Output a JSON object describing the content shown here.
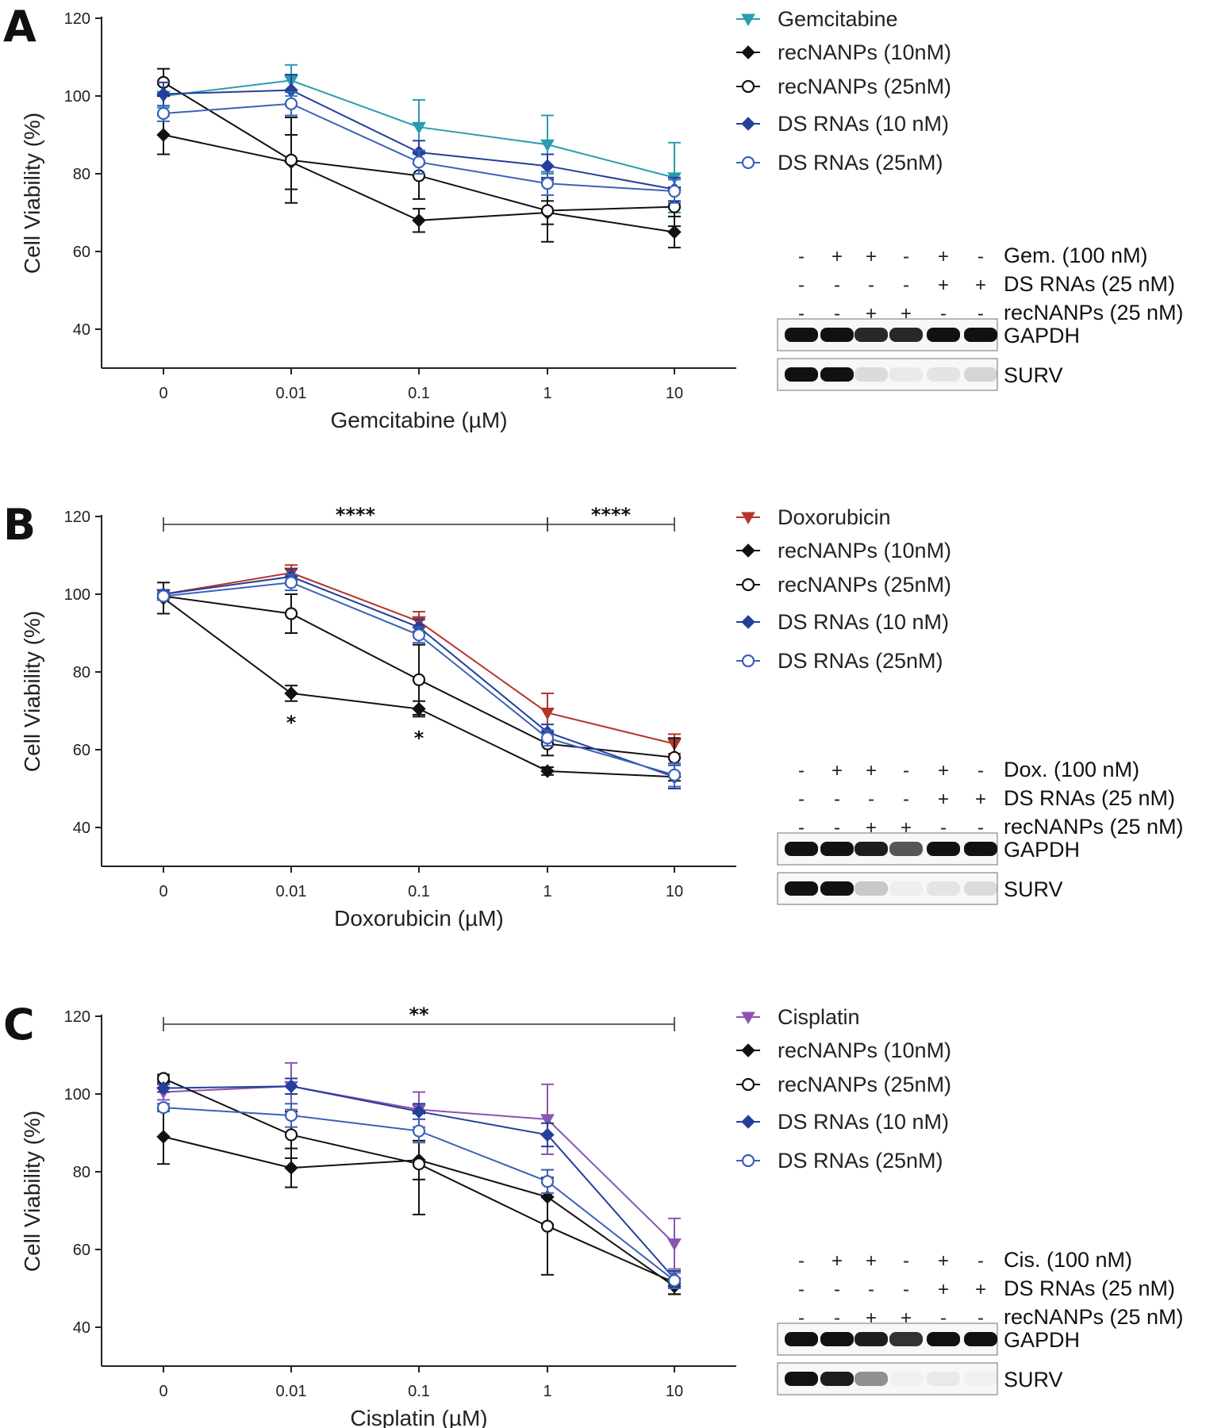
{
  "panel_letters": [
    "A",
    "B",
    "C"
  ],
  "chart_data": [
    {
      "type": "line",
      "panel": "A",
      "xlabel": "Gemcitabine (µM)",
      "ylabel": "Cell Viability (%)",
      "categories": [
        "0",
        "0.01",
        "0.1",
        "1",
        "10"
      ],
      "yticks": [
        40,
        60,
        80,
        100,
        120
      ],
      "ylim": [
        30,
        120
      ],
      "series": [
        {
          "name": "Gemcitabine",
          "color": "#2a9bb0",
          "marker": "triangle-down",
          "values": [
            100,
            104,
            92,
            87.5,
            79
          ],
          "errors": [
            3,
            4,
            7,
            7.5,
            9
          ]
        },
        {
          "name": "recNANPs (10nM)",
          "color": "#111111",
          "marker": "diamond",
          "values": [
            90,
            83,
            68,
            70,
            65
          ],
          "errors": [
            5,
            7,
            3,
            3,
            4
          ]
        },
        {
          "name": "recNANPs (25nM)",
          "color": "#111111",
          "marker": "circle-open",
          "values": [
            103.5,
            83.5,
            79.5,
            70.5,
            71.5
          ],
          "errors": [
            3.5,
            11,
            6,
            8,
            5
          ]
        },
        {
          "name": "DS RNAs (10 nM)",
          "color": "#243f9c",
          "marker": "diamond",
          "values": [
            100.5,
            101.5,
            85.5,
            82,
            76
          ],
          "errors": [
            3,
            4,
            3,
            3,
            3
          ]
        },
        {
          "name": "DS RNAs (25nM)",
          "color": "#3b62b8",
          "marker": "circle-open",
          "values": [
            95.5,
            98,
            83,
            77.5,
            75.5
          ],
          "errors": [
            2,
            3,
            3,
            3,
            3
          ]
        }
      ],
      "significance": []
    },
    {
      "type": "line",
      "panel": "B",
      "xlabel": "Doxorubicin (µM)",
      "ylabel": "Cell Viability (%)",
      "categories": [
        "0",
        "0.01",
        "0.1",
        "1",
        "10"
      ],
      "yticks": [
        40,
        60,
        80,
        100,
        120
      ],
      "ylim": [
        30,
        120
      ],
      "series": [
        {
          "name": "Doxorubicin",
          "color": "#b5352a",
          "marker": "triangle-down",
          "values": [
            100,
            105.5,
            93,
            69.5,
            61.5
          ],
          "errors": [
            1,
            2,
            2.5,
            5,
            2.5
          ]
        },
        {
          "name": "recNANPs (10nM)",
          "color": "#111111",
          "marker": "diamond",
          "values": [
            99,
            74.5,
            70.5,
            54.5,
            53
          ],
          "errors": [
            4,
            2,
            2,
            1,
            1
          ]
        },
        {
          "name": "recNANPs (25nM)",
          "color": "#111111",
          "marker": "circle-open",
          "values": [
            99.5,
            95,
            78,
            61.5,
            58
          ],
          "errors": [
            1,
            5,
            9,
            3,
            5
          ]
        },
        {
          "name": "DS RNAs (10 nM)",
          "color": "#243f9c",
          "marker": "diamond",
          "values": [
            100,
            104.5,
            91.5,
            64.5,
            53
          ],
          "errors": [
            1,
            2,
            2,
            2,
            3
          ]
        },
        {
          "name": "DS RNAs (25nM)",
          "color": "#3b62b8",
          "marker": "circle-open",
          "values": [
            99.5,
            103,
            89.5,
            63,
            53.5
          ],
          "errors": [
            1,
            2,
            2,
            2,
            3
          ]
        }
      ],
      "significance": [
        {
          "label": "****",
          "from": 0,
          "to": 3
        },
        {
          "label": "****",
          "from": 3,
          "to": 4
        }
      ],
      "point_annotations": [
        {
          "label": "*",
          "index": 1,
          "value": 73.5
        },
        {
          "label": "*",
          "index": 2,
          "value": 69.5
        }
      ]
    },
    {
      "type": "line",
      "panel": "C",
      "xlabel": "Cisplatin (µM)",
      "ylabel": "Cell Viability (%)",
      "categories": [
        "0",
        "0.01",
        "0.1",
        "1",
        "10"
      ],
      "yticks": [
        40,
        60,
        80,
        100,
        120
      ],
      "ylim": [
        30,
        120
      ],
      "series": [
        {
          "name": "Cisplatin",
          "color": "#8a55b0",
          "marker": "triangle-down",
          "values": [
            100.5,
            102,
            96,
            93.5,
            61.5
          ],
          "errors": [
            2,
            6,
            4.5,
            9,
            6.5
          ]
        },
        {
          "name": "recNANPs (10nM)",
          "color": "#111111",
          "marker": "diamond",
          "values": [
            89,
            81,
            83,
            73.5,
            50.5
          ],
          "errors": [
            7,
            5,
            5,
            7,
            2
          ]
        },
        {
          "name": "recNANPs (25nM)",
          "color": "#111111",
          "marker": "circle-open",
          "values": [
            104,
            89.5,
            82,
            66,
            51.5
          ],
          "errors": [
            1,
            6,
            13,
            12.5,
            3
          ]
        },
        {
          "name": "DS RNAs (10 nM)",
          "color": "#243f9c",
          "marker": "diamond",
          "values": [
            101.5,
            102,
            95.5,
            89.5,
            52.5
          ],
          "errors": [
            1,
            2,
            2,
            3,
            2
          ]
        },
        {
          "name": "DS RNAs (25nM)",
          "color": "#3b62b8",
          "marker": "circle-open",
          "values": [
            96.5,
            94.5,
            90.5,
            77.5,
            52
          ],
          "errors": [
            1,
            3,
            3,
            3,
            2
          ]
        }
      ],
      "significance": [
        {
          "label": "**",
          "from": 0,
          "to": 4
        }
      ]
    }
  ],
  "blots": [
    {
      "panel": "A",
      "rows": [
        {
          "label": "Gem. (100 nM)",
          "signs": [
            "-",
            "+",
            "+",
            "-",
            "+",
            "-"
          ]
        },
        {
          "label": "DS RNAs (25 nM)",
          "signs": [
            "-",
            "-",
            "-",
            "-",
            "+",
            "+"
          ]
        },
        {
          "label": "recNANPs (25 nM)",
          "signs": [
            "-",
            "-",
            "+",
            "+",
            "-",
            "-"
          ]
        }
      ],
      "bands": [
        {
          "label": "GAPDH",
          "intensities": [
            1,
            1,
            0.9,
            0.9,
            1,
            1
          ]
        },
        {
          "label": "SURV",
          "intensities": [
            1,
            1,
            0.12,
            0.06,
            0.08,
            0.15
          ]
        }
      ]
    },
    {
      "panel": "B",
      "rows": [
        {
          "label": "Dox. (100 nM)",
          "signs": [
            "-",
            "+",
            "+",
            "-",
            "+",
            "-"
          ]
        },
        {
          "label": "DS RNAs (25 nM)",
          "signs": [
            "-",
            "-",
            "-",
            "-",
            "+",
            "+"
          ]
        },
        {
          "label": "recNANPs (25 nM)",
          "signs": [
            "-",
            "-",
            "+",
            "+",
            "-",
            "-"
          ]
        }
      ],
      "bands": [
        {
          "label": "GAPDH",
          "intensities": [
            1,
            1,
            0.95,
            0.7,
            1,
            1
          ]
        },
        {
          "label": "SURV",
          "intensities": [
            1,
            1,
            0.2,
            0.04,
            0.08,
            0.12
          ]
        }
      ]
    },
    {
      "panel": "C",
      "rows": [
        {
          "label": "Cis. (100 nM)",
          "signs": [
            "-",
            "+",
            "+",
            "-",
            "+",
            "-"
          ]
        },
        {
          "label": "DS RNAs (25 nM)",
          "signs": [
            "-",
            "-",
            "-",
            "-",
            "+",
            "+"
          ]
        },
        {
          "label": "recNANPs (25 nM)",
          "signs": [
            "-",
            "-",
            "+",
            "+",
            "-",
            "-"
          ]
        }
      ],
      "bands": [
        {
          "label": "GAPDH",
          "intensities": [
            1,
            1,
            0.95,
            0.85,
            1,
            1
          ]
        },
        {
          "label": "SURV",
          "intensities": [
            1,
            0.95,
            0.45,
            0.03,
            0.06,
            0.03
          ]
        }
      ]
    }
  ]
}
